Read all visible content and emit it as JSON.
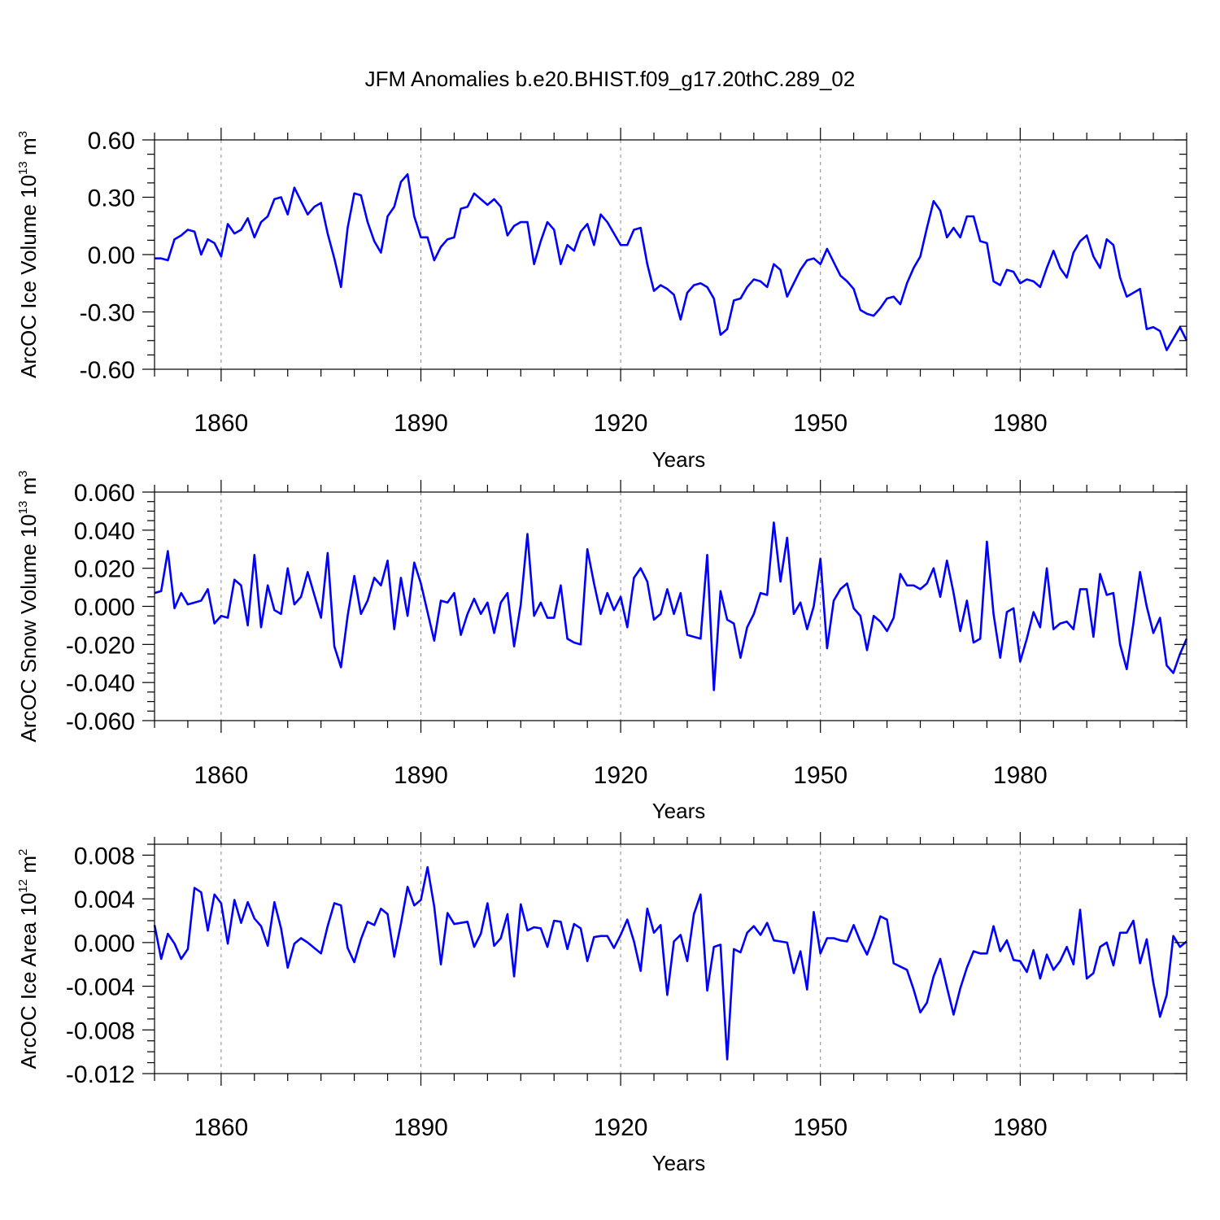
{
  "title": "JFM Anomalies b.e20.BHIST.f09_g17.20thC.289_02",
  "colors": {
    "line": "#0000ff",
    "axis": "#000000",
    "grid": "#888888"
  },
  "chart_data": [
    {
      "type": "line",
      "title": "JFM Anomalies b.e20.BHIST.f09_g17.20thC.289_02",
      "xlabel": "Years",
      "ylabel": {
        "prefix": "ArcOC Ice Volume 10",
        "exp": "13",
        "unit": " m",
        "unit_exp": "3"
      },
      "xlim": [
        1850,
        2005
      ],
      "ylim": [
        -0.6,
        0.6
      ],
      "xticks": [
        1860,
        1890,
        1920,
        1950,
        1980
      ],
      "xtick_labels": [
        "1860",
        "1890",
        "1920",
        "1950",
        "1980"
      ],
      "yticks": [
        -0.6,
        -0.3,
        0.0,
        0.3,
        0.6
      ],
      "ytick_labels": [
        "-0.60",
        "-0.30",
        "0.00",
        "0.30",
        "0.60"
      ],
      "yminor_step": 0.075,
      "x_start": 1850,
      "series": [
        {
          "name": "ice_volume",
          "values": [
            -0.02,
            -0.02,
            -0.03,
            0.08,
            0.1,
            0.13,
            0.12,
            0.0,
            0.08,
            0.06,
            -0.01,
            0.16,
            0.11,
            0.13,
            0.19,
            0.09,
            0.17,
            0.2,
            0.29,
            0.3,
            0.21,
            0.35,
            0.28,
            0.21,
            0.25,
            0.27,
            0.11,
            -0.02,
            -0.17,
            0.14,
            0.32,
            0.31,
            0.17,
            0.07,
            0.01,
            0.2,
            0.25,
            0.38,
            0.42,
            0.2,
            0.09,
            0.09,
            -0.03,
            0.04,
            0.08,
            0.09,
            0.24,
            0.25,
            0.32,
            0.29,
            0.26,
            0.29,
            0.25,
            0.1,
            0.15,
            0.17,
            0.17,
            -0.05,
            0.07,
            0.17,
            0.13,
            -0.05,
            0.05,
            0.02,
            0.12,
            0.16,
            0.05,
            0.21,
            0.17,
            0.11,
            0.05,
            0.05,
            0.13,
            0.14,
            -0.05,
            -0.19,
            -0.16,
            -0.18,
            -0.21,
            -0.34,
            -0.2,
            -0.16,
            -0.15,
            -0.17,
            -0.23,
            -0.42,
            -0.39,
            -0.24,
            -0.23,
            -0.17,
            -0.13,
            -0.14,
            -0.17,
            -0.05,
            -0.08,
            -0.22,
            -0.15,
            -0.08,
            -0.03,
            -0.02,
            -0.05,
            0.03,
            -0.04,
            -0.11,
            -0.14,
            -0.18,
            -0.29,
            -0.31,
            -0.32,
            -0.28,
            -0.23,
            -0.22,
            -0.26,
            -0.15,
            -0.07,
            -0.01,
            0.14,
            0.28,
            0.23,
            0.09,
            0.14,
            0.09,
            0.2,
            0.2,
            0.07,
            0.06,
            -0.14,
            -0.16,
            -0.08,
            -0.09,
            -0.15,
            -0.13,
            -0.14,
            -0.17,
            -0.07,
            0.02,
            -0.07,
            -0.12,
            0.01,
            0.07,
            0.1,
            -0.01,
            -0.07,
            0.08,
            0.05,
            -0.12,
            -0.22,
            -0.2,
            -0.18,
            -0.39,
            -0.38,
            -0.4,
            -0.5,
            -0.44,
            -0.38,
            -0.45
          ]
        }
      ]
    },
    {
      "type": "line",
      "xlabel": "Years",
      "ylabel": {
        "prefix": "ArcOC Snow Volume 10",
        "exp": "13",
        "unit": " m",
        "unit_exp": "3"
      },
      "xlim": [
        1850,
        2005
      ],
      "ylim": [
        -0.06,
        0.06
      ],
      "xticks": [
        1860,
        1890,
        1920,
        1950,
        1980
      ],
      "xtick_labels": [
        "1860",
        "1890",
        "1920",
        "1950",
        "1980"
      ],
      "yticks": [
        -0.06,
        -0.04,
        -0.02,
        0.0,
        0.02,
        0.04,
        0.06
      ],
      "ytick_labels": [
        "-0.060",
        "-0.040",
        "-0.020",
        "0.000",
        "0.020",
        "0.040",
        "0.060"
      ],
      "yminor_step": 0.005,
      "x_start": 1850,
      "series": [
        {
          "name": "snow_volume",
          "values": [
            0.007,
            0.008,
            0.029,
            -0.001,
            0.007,
            0.001,
            0.002,
            0.003,
            0.009,
            -0.009,
            -0.005,
            -0.006,
            0.014,
            0.011,
            -0.01,
            0.027,
            -0.011,
            0.011,
            -0.002,
            -0.004,
            0.02,
            0.001,
            0.005,
            0.018,
            0.006,
            -0.006,
            0.028,
            -0.021,
            -0.032,
            -0.005,
            0.016,
            -0.004,
            0.003,
            0.015,
            0.011,
            0.024,
            -0.012,
            0.015,
            -0.005,
            0.023,
            0.012,
            -0.003,
            -0.018,
            0.003,
            0.002,
            0.007,
            -0.015,
            -0.004,
            0.004,
            -0.004,
            0.002,
            -0.014,
            0.002,
            0.007,
            -0.021,
            0.001,
            0.038,
            -0.005,
            0.002,
            -0.006,
            -0.006,
            0.011,
            -0.017,
            -0.019,
            -0.02,
            0.03,
            0.012,
            -0.004,
            0.007,
            -0.002,
            0.005,
            -0.011,
            0.015,
            0.02,
            0.013,
            -0.007,
            -0.004,
            0.009,
            -0.004,
            0.007,
            -0.015,
            -0.016,
            -0.017,
            0.027,
            -0.044,
            0.008,
            -0.007,
            -0.009,
            -0.027,
            -0.011,
            -0.004,
            0.007,
            0.006,
            0.044,
            0.013,
            0.036,
            -0.004,
            0.002,
            -0.012,
            0.0,
            0.025,
            -0.022,
            0.003,
            0.009,
            0.012,
            -0.001,
            -0.005,
            -0.023,
            -0.005,
            -0.008,
            -0.013,
            -0.006,
            0.017,
            0.011,
            0.011,
            0.009,
            0.012,
            0.02,
            0.005,
            0.024,
            0.007,
            -0.013,
            0.003,
            -0.019,
            -0.017,
            0.034,
            -0.004,
            -0.027,
            -0.003,
            -0.001,
            -0.029,
            -0.017,
            -0.003,
            -0.011,
            0.02,
            -0.012,
            -0.009,
            -0.008,
            -0.012,
            0.009,
            0.009,
            -0.016,
            0.017,
            0.006,
            0.007,
            -0.02,
            -0.033,
            -0.009,
            0.018,
            0.0,
            -0.014,
            -0.006,
            -0.031,
            -0.035,
            -0.025,
            -0.017
          ]
        }
      ]
    },
    {
      "type": "line",
      "xlabel": "Years",
      "ylabel": {
        "prefix": "ArcOC Ice Area 10",
        "exp": "12",
        "unit": " m",
        "unit_exp": "2"
      },
      "xlim": [
        1850,
        2005
      ],
      "ylim": [
        -0.012,
        0.009
      ],
      "xticks": [
        1860,
        1890,
        1920,
        1950,
        1980
      ],
      "xtick_labels": [
        "1860",
        "1890",
        "1920",
        "1950",
        "1980"
      ],
      "yticks": [
        -0.012,
        -0.008,
        -0.004,
        0.0,
        0.004,
        0.008
      ],
      "ytick_labels": [
        "-0.012",
        "-0.008",
        "-0.004",
        "0.000",
        "0.004",
        "0.008"
      ],
      "yminor_step": 0.001,
      "x_start": 1850,
      "series": [
        {
          "name": "ice_area",
          "values": [
            0.0016,
            -0.0015,
            0.0008,
            -0.0001,
            -0.0015,
            -0.0006,
            0.005,
            0.0046,
            0.0011,
            0.0044,
            0.0036,
            -0.0001,
            0.0039,
            0.0018,
            0.0037,
            0.0022,
            0.0015,
            -0.0003,
            0.0037,
            0.0013,
            -0.0023,
            -0.0001,
            0.0004,
            0.0,
            -0.0005,
            -0.001,
            0.0015,
            0.0036,
            0.0034,
            -0.0005,
            -0.0018,
            0.0003,
            0.0019,
            0.0016,
            0.0031,
            0.0026,
            -0.0013,
            0.0017,
            0.0051,
            0.0034,
            0.0039,
            0.0069,
            0.0033,
            -0.002,
            0.0027,
            0.0017,
            0.0018,
            0.0019,
            -0.0004,
            0.0008,
            0.0036,
            -0.0003,
            0.0004,
            0.0026,
            -0.0031,
            0.0035,
            0.0011,
            0.0014,
            0.0013,
            -0.0004,
            0.002,
            0.0019,
            -0.0006,
            0.0017,
            0.0013,
            -0.0017,
            0.0005,
            0.0006,
            0.0006,
            -0.0005,
            0.0007,
            0.0021,
            0.0001,
            -0.0026,
            0.0031,
            0.0009,
            0.0016,
            -0.0048,
            0.0001,
            0.0007,
            -0.0017,
            0.0026,
            0.0044,
            -0.0044,
            -0.0004,
            -0.0002,
            -0.0107,
            -0.0006,
            -0.0009,
            0.0009,
            0.0015,
            0.0007,
            0.0018,
            0.0002,
            0.0001,
            0.0,
            -0.0028,
            -0.0008,
            -0.0043,
            0.0028,
            -0.001,
            0.0004,
            0.0004,
            0.0002,
            0.0001,
            0.0016,
            0.0001,
            -0.0011,
            0.0005,
            0.0024,
            0.0021,
            -0.0019,
            -0.0022,
            -0.0025,
            -0.0043,
            -0.0064,
            -0.0055,
            -0.0031,
            -0.0015,
            -0.0041,
            -0.0066,
            -0.0042,
            -0.0023,
            -0.0008,
            -0.001,
            -0.001,
            0.0015,
            -0.0008,
            0.0002,
            -0.0016,
            -0.0017,
            -0.0027,
            -0.0007,
            -0.0033,
            -0.0011,
            -0.0025,
            -0.0017,
            -0.0004,
            -0.002,
            0.003,
            -0.0033,
            -0.0028,
            -0.0004,
            0.0,
            -0.0021,
            0.0009,
            0.0009,
            0.002,
            -0.0019,
            0.0003,
            -0.0037,
            -0.0068,
            -0.0048,
            0.0006,
            -0.0004,
            0.0001
          ]
        }
      ]
    }
  ]
}
